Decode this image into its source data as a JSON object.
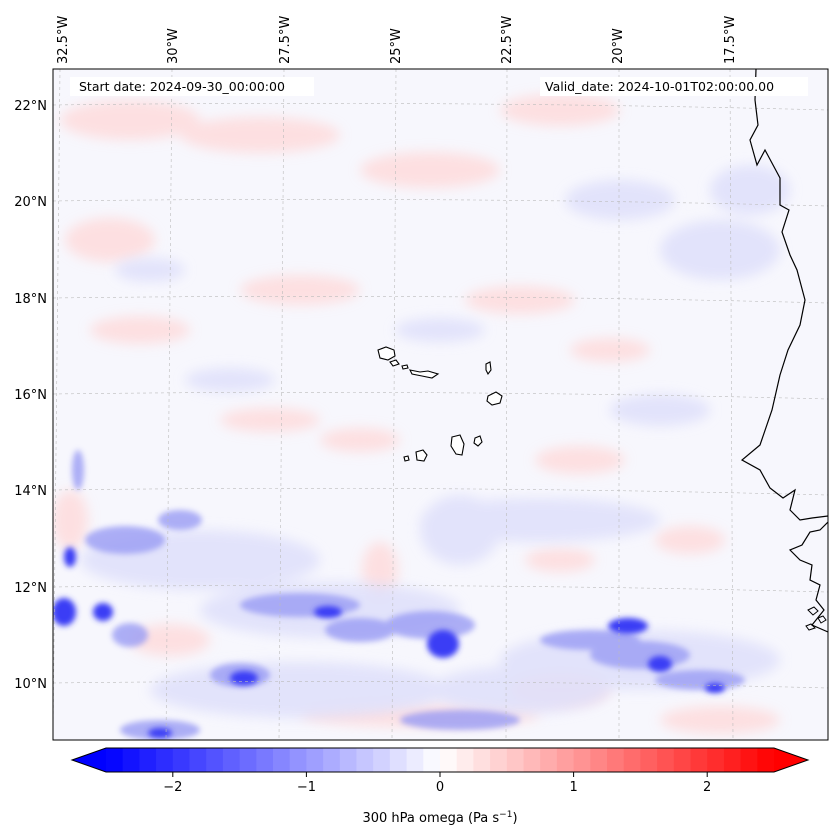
{
  "map": {
    "start_date_text": "Start date: 2024-09-30_00:00:00",
    "valid_date_text": "Valid_date: 2024-10-01T02:00:00.00",
    "lon_labels": [
      "32.5°W",
      "30°W",
      "27.5°W",
      "25°W",
      "22.5°W",
      "20°W",
      "17.5°W"
    ],
    "lat_labels": [
      "22°N",
      "20°N",
      "18°N",
      "16°N",
      "14°N",
      "12°N",
      "10°N"
    ],
    "lon_range": [
      -33.0,
      -15.2
    ],
    "lat_range": [
      8.9,
      22.8
    ],
    "field": "300 hPa omega",
    "colormap": "bwr",
    "land_color": "#ffffff",
    "coast_color": "#000000",
    "grid": "dashed"
  },
  "colorbar": {
    "ticks": [
      "−2",
      "−1",
      "0",
      "1",
      "2"
    ],
    "tick_values": [
      -2,
      -1,
      0,
      1,
      2
    ],
    "range": [
      -2.5,
      2.5
    ],
    "extend": "both",
    "label_main": "300 hPa omega (Pa s",
    "label_sup": "−1",
    "label_end": ")",
    "min_color": "#0000ff",
    "mid_color": "#ffffff",
    "max_color": "#ff0000"
  }
}
